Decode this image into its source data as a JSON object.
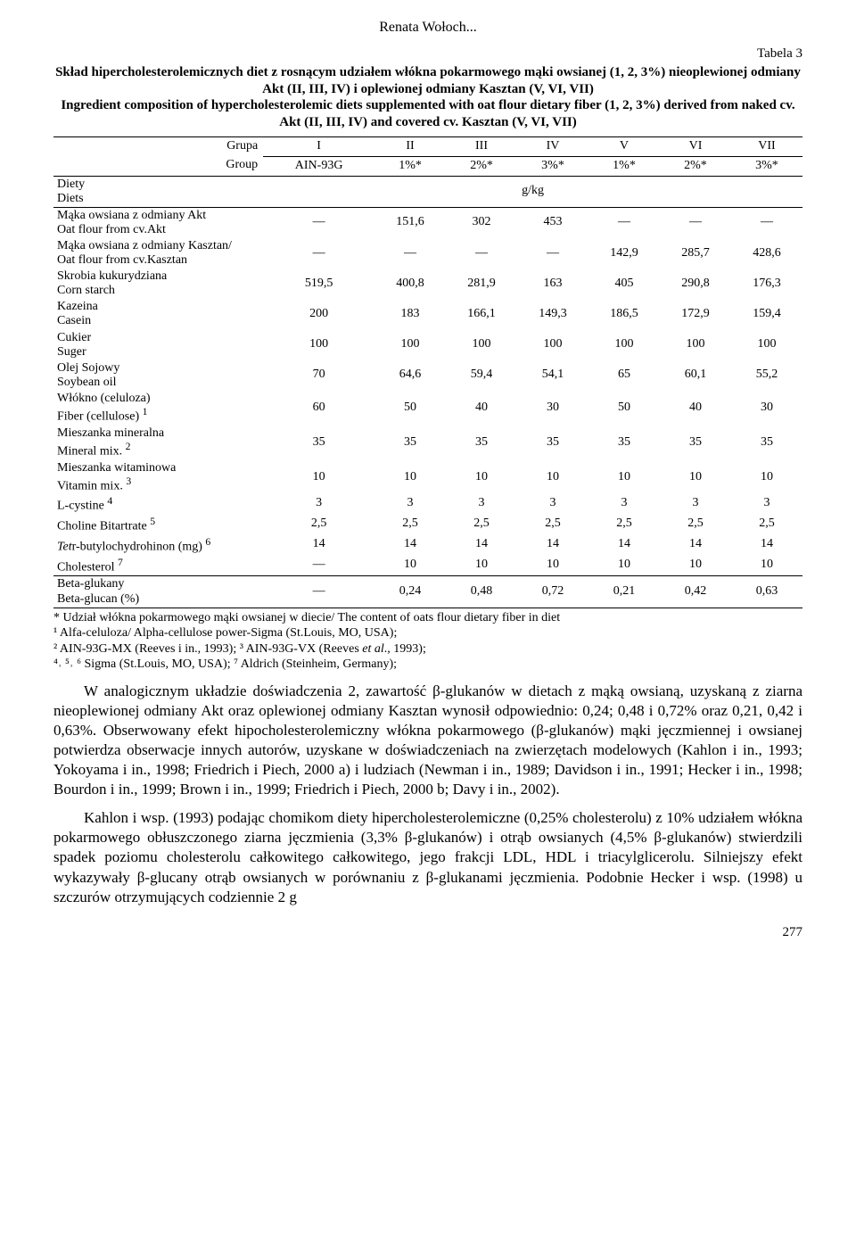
{
  "author": "Renata Wołoch...",
  "table": {
    "label": "Tabela 3",
    "caption_pl": "Skład hipercholesterolemicznych diet z rosnącym udziałem włókna pokarmowego mąki owsianej (1, 2, 3%) nieoplewionej odmiany Akt (II, III, IV) i oplewionej odmiany Kasztan (V, VI, VII)",
    "caption_en": "Ingredient composition of hypercholesterolemic diets supplemented with oat flour dietary fiber (1, 2, 3%) derived from naked cv. Akt (II, III, IV) and covered cv. Kasztan (V, VI, VII)",
    "head": {
      "grupa": "Grupa",
      "group": "Group",
      "roman": [
        "I",
        "II",
        "III",
        "IV",
        "V",
        "VI",
        "VII"
      ],
      "codes": [
        "AIN-93G",
        "1%*",
        "2%*",
        "3%*",
        "1%*",
        "2%*",
        "3%*"
      ],
      "diety": "Diety",
      "diets": "Diets",
      "unit": "g/kg"
    },
    "rows": [
      {
        "lab_pl": "Mąka owsiana z odmiany Akt",
        "lab_en": "Oat flour from cv.Akt",
        "v": [
          "—",
          "151,6",
          "302",
          "453",
          "—",
          "—",
          "—"
        ]
      },
      {
        "lab_pl": "Mąka owsiana z odmiany Kasztan/",
        "lab_en": "Oat flour from cv.Kasztan",
        "v": [
          "—",
          "—",
          "—",
          "—",
          "142,9",
          "285,7",
          "428,6"
        ]
      },
      {
        "lab_pl": "Skrobia kukurydziana",
        "lab_en": "Corn starch",
        "v": [
          "519,5",
          "400,8",
          "281,9",
          "163",
          "405",
          "290,8",
          "176,3"
        ]
      },
      {
        "lab_pl": "Kazeina",
        "lab_en": "Casein",
        "v": [
          "200",
          "183",
          "166,1",
          "149,3",
          "186,5",
          "172,9",
          "159,4"
        ]
      },
      {
        "lab_pl": "Cukier",
        "lab_en": "Suger",
        "v": [
          "100",
          "100",
          "100",
          "100",
          "100",
          "100",
          "100"
        ]
      },
      {
        "lab_pl": "Olej Sojowy",
        "lab_en": "Soybean oil",
        "v": [
          "70",
          "64,6",
          "59,4",
          "54,1",
          "65",
          "60,1",
          "55,2"
        ]
      },
      {
        "lab_pl": "Włókno (celuloza)",
        "lab_en": "Fiber (cellulose) ",
        "sup_en": "1",
        "v": [
          "60",
          "50",
          "40",
          "30",
          "50",
          "40",
          "30"
        ]
      },
      {
        "lab_pl": "Mieszanka mineralna",
        "lab_en": "Mineral mix. ",
        "sup_en": "2",
        "v": [
          "35",
          "35",
          "35",
          "35",
          "35",
          "35",
          "35"
        ]
      },
      {
        "lab_pl": "Mieszanka witaminowa",
        "lab_en": "Vitamin mix. ",
        "sup_en": "3",
        "v": [
          "10",
          "10",
          "10",
          "10",
          "10",
          "10",
          "10"
        ]
      },
      {
        "lab_pl": "L-cystine ",
        "sup_pl": "4",
        "v": [
          "3",
          "3",
          "3",
          "3",
          "3",
          "3",
          "3"
        ]
      },
      {
        "lab_pl": "Choline Bitartrate ",
        "sup_pl": "5",
        "v": [
          "2,5",
          "2,5",
          "2,5",
          "2,5",
          "2,5",
          "2,5",
          "2,5"
        ]
      },
      {
        "lab_pl": "Tetr-butylochydrohinon (mg) ",
        "sup_pl": "6",
        "italic_first": true,
        "v": [
          "14",
          "14",
          "14",
          "14",
          "14",
          "14",
          "14"
        ]
      },
      {
        "lab_pl": "Cholesterol ",
        "sup_pl": "7",
        "v": [
          "—",
          "10",
          "10",
          "10",
          "10",
          "10",
          "10"
        ]
      }
    ],
    "beta_row": {
      "lab_pl": "Beta-glukany",
      "lab_en": "Beta-glucan (%)",
      "v": [
        "—",
        "0,24",
        "0,48",
        "0,72",
        "0,21",
        "0,42",
        "0,63"
      ]
    },
    "footnotes": [
      "* Udział włókna pokarmowego mąki owsianej w diecie/ The content of oats flour dietary fiber in diet",
      "¹ Alfa-celuloza/ Alpha-cellulose power-Sigma (St.Louis, MO, USA);",
      "² AIN-93G-MX (Reeves i in., 1993); ³ AIN-93G-VX (Reeves et al., 1993);",
      "⁴˒ ⁵˒ ⁶ Sigma (St.Louis, MO, USA); ⁷ Aldrich (Steinheim, Germany);"
    ]
  },
  "para1": "W analogicznym układzie doświadczenia 2, zawartość β-glukanów w dietach z mąką owsianą, uzyskaną z ziarna nieoplewionej odmiany Akt oraz oplewionej odmiany Kasztan wynosił odpowiednio: 0,24; 0,48 i 0,72% oraz 0,21, 0,42 i 0,63%. Obserwowany efekt hipocholesterolemiczny włókna pokarmowego (β-glukanów) mąki jęczmiennej i owsianej potwierdza obserwacje innych autorów, uzyskane w doświadczeniach na zwierzętach modelowych (Kahlon i in., 1993; Yokoyama i in., 1998; Friedrich i Piech, 2000 a) i ludziach (Newman i in., 1989; Davidson i in., 1991; Hecker i in., 1998; Bourdon i in., 1999; Brown i in., 1999; Friedrich i Piech, 2000 b; Davy i in., 2002).",
  "para2": "Kahlon i wsp. (1993) podając chomikom diety hipercholesterolemiczne (0,25% cholesterolu) z 10% udziałem włókna pokarmowego obłuszczonego ziarna jęczmienia (3,3% β-glukanów) i otrąb owsianych (4,5% β-glukanów) stwierdzili spadek poziomu cholesterolu całkowitego całkowitego, jego frakcji LDL, HDL i triacylglicerolu. Silniejszy efekt wykazywały β-glucany otrąb owsianych w porównaniu z β-glukanami jęczmienia. Podobnie Hecker i wsp. (1998) u szczurów otrzymujących codziennie 2 g",
  "page": "277"
}
